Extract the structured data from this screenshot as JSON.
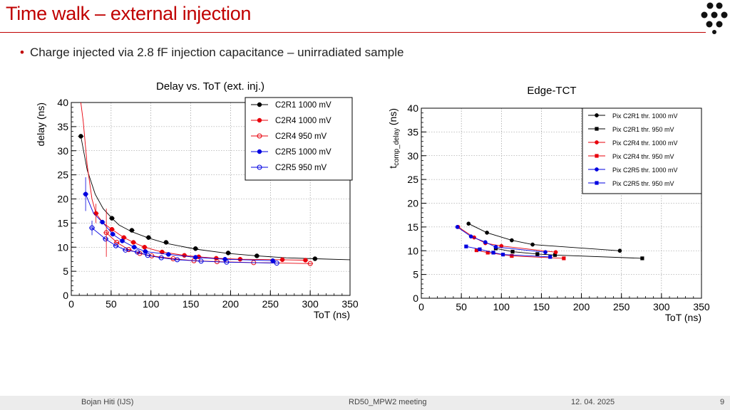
{
  "slide": {
    "title": "Time walk – external injection",
    "bullet": "Charge injected via 2.8 fF injection capacitance – unirradiated sample",
    "accent_color": "#c00000",
    "logo_icon": "dot-matrix-logo-icon"
  },
  "footer": {
    "author": "Bojan Hiti (IJS)",
    "meeting": "RD50_MPW2 meeting",
    "date": "12. 04. 2025",
    "page": "9"
  },
  "chart_data": [
    {
      "type": "scatter",
      "title": "Delay vs. ToT (ext. inj.)",
      "xlabel": "ToT (ns)",
      "ylabel": "delay (ns)",
      "xlim": [
        0,
        350
      ],
      "ylim": [
        0,
        40
      ],
      "xticks": [
        0,
        50,
        100,
        150,
        200,
        250,
        300,
        350
      ],
      "yticks": [
        0,
        5,
        10,
        15,
        20,
        25,
        30,
        35,
        40
      ],
      "grid": true,
      "legend_position": "top-right",
      "series": [
        {
          "name": "C2R1 1000 mV",
          "color": "#000000",
          "marker": "filled-circle",
          "x": [
            12,
            51,
            76,
            97,
            119,
            156,
            197,
            233,
            306
          ],
          "y": [
            33,
            16,
            13.5,
            12,
            11,
            9.7,
            8.8,
            8.2,
            7.6
          ],
          "fit": [
            [
              12,
              33
            ],
            [
              20,
              26
            ],
            [
              30,
              21
            ],
            [
              40,
              18
            ],
            [
              51,
              16
            ],
            [
              60,
              14.6
            ],
            [
              76,
              13.2
            ],
            [
              97,
              11.9
            ],
            [
              119,
              10.8
            ],
            [
              156,
              9.6
            ],
            [
              197,
              8.7
            ],
            [
              233,
              8.2
            ],
            [
              270,
              7.8
            ],
            [
              306,
              7.6
            ],
            [
              350,
              7.4
            ]
          ]
        },
        {
          "name": "C2R4 1000 mV",
          "color": "#e8000b",
          "marker": "filled-circle",
          "x": [
            31,
            51,
            66,
            78,
            92,
            114,
            142,
            160,
            182,
            212,
            265,
            294
          ],
          "y": [
            17,
            13.7,
            12,
            11,
            10,
            9,
            8.3,
            8,
            7.7,
            7.5,
            7.4,
            7.3
          ],
          "fit": [
            [
              12,
              40
            ],
            [
              15,
              36
            ],
            [
              20,
              27
            ],
            [
              26,
              20
            ],
            [
              31,
              17
            ],
            [
              40,
              15
            ],
            [
              51,
              13.7
            ],
            [
              66,
              12
            ],
            [
              78,
              11
            ],
            [
              92,
              10
            ],
            [
              114,
              9
            ],
            [
              142,
              8.3
            ],
            [
              160,
              8
            ],
            [
              182,
              7.7
            ],
            [
              212,
              7.5
            ],
            [
              265,
              7.4
            ],
            [
              294,
              7.3
            ]
          ]
        },
        {
          "name": "C2R4 950 mV",
          "color": "#e8000b",
          "marker": "open-circle",
          "x": [
            44,
            57,
            72,
            86,
            101,
            128,
            154,
            183,
            229,
            300
          ],
          "y": [
            13,
            11,
            9.5,
            8.7,
            8.2,
            7.6,
            7.2,
            7,
            6.8,
            6.6
          ],
          "fit": [
            [
              44,
              13
            ],
            [
              57,
              11
            ],
            [
              72,
              9.5
            ],
            [
              86,
              8.7
            ],
            [
              101,
              8.2
            ],
            [
              128,
              7.6
            ],
            [
              154,
              7.2
            ],
            [
              183,
              7
            ],
            [
              229,
              6.8
            ],
            [
              300,
              6.6
            ]
          ]
        },
        {
          "name": "C2R5 1000 mV",
          "color": "#0000e0",
          "marker": "filled-circle",
          "x": [
            18,
            39,
            52,
            64,
            79,
            93,
            122,
            156,
            193,
            253
          ],
          "y": [
            21,
            15.2,
            12.7,
            11.3,
            10,
            9.1,
            8.5,
            7.9,
            7.5,
            7.2
          ],
          "fit": [
            [
              18,
              21
            ],
            [
              28,
              17
            ],
            [
              39,
              15.2
            ],
            [
              52,
              12.7
            ],
            [
              64,
              11.3
            ],
            [
              79,
              10
            ],
            [
              93,
              9.1
            ],
            [
              122,
              8.5
            ],
            [
              156,
              7.9
            ],
            [
              193,
              7.5
            ],
            [
              253,
              7.2
            ]
          ]
        },
        {
          "name": "C2R5 950 mV",
          "color": "#0000e0",
          "marker": "open-circle",
          "x": [
            26,
            43,
            56,
            68,
            83,
            96,
            113,
            133,
            163,
            195,
            258
          ],
          "y": [
            14,
            11.7,
            10.3,
            9.4,
            9,
            8.3,
            7.8,
            7.4,
            7.1,
            6.9,
            6.7
          ],
          "fit": [
            [
              26,
              14
            ],
            [
              43,
              11.7
            ],
            [
              56,
              10.3
            ],
            [
              68,
              9.4
            ],
            [
              83,
              9
            ],
            [
              96,
              8.3
            ],
            [
              113,
              7.8
            ],
            [
              133,
              7.4
            ],
            [
              163,
              7.1
            ],
            [
              195,
              6.9
            ],
            [
              258,
              6.7
            ]
          ]
        }
      ]
    },
    {
      "type": "scatter",
      "title": "Edge-TCT",
      "xlabel": "ToT (ns)",
      "ylabel": "t_comp_delay (ns)",
      "ylabel_main": "t",
      "ylabel_sub": "comp_delay",
      "ylabel_unit": " (ns)",
      "xlim": [
        0,
        350
      ],
      "ylim": [
        0,
        40
      ],
      "xticks": [
        0,
        50,
        100,
        150,
        200,
        250,
        300,
        350
      ],
      "yticks": [
        0,
        5,
        10,
        15,
        20,
        25,
        30,
        35,
        40
      ],
      "grid": true,
      "legend_position": "top-right",
      "series": [
        {
          "name": "Pix C2R1 thr. 1000 mV",
          "color": "#000000",
          "marker": "filled-circle",
          "x": [
            59,
            82,
            113,
            139,
            248
          ],
          "y": [
            15.7,
            13.8,
            12.2,
            11.3,
            10
          ]
        },
        {
          "name": "Pix C2R1 thr. 950 mV",
          "color": "#000000",
          "marker": "filled-square",
          "x": [
            93,
            114,
            145,
            167,
            276
          ],
          "y": [
            10.5,
            9.8,
            9.3,
            9.1,
            8.4
          ]
        },
        {
          "name": "Pix C2R4 thr. 1000 mV",
          "color": "#e8000b",
          "marker": "filled-circle",
          "x": [
            46,
            66,
            80,
            100,
            168
          ],
          "y": [
            15,
            12.8,
            11.6,
            11,
            9.7
          ]
        },
        {
          "name": "Pix C2R4 thr. 950 mV",
          "color": "#e8000b",
          "marker": "filled-square",
          "x": [
            69,
            83,
            113,
            178
          ],
          "y": [
            10.1,
            9.6,
            8.9,
            8.4
          ]
        },
        {
          "name": "Pix C2R5 thr. 1000 mV",
          "color": "#0000e0",
          "marker": "filled-circle",
          "x": [
            45,
            62,
            80,
            93,
            155
          ],
          "y": [
            15,
            13,
            11.8,
            10.8,
            9.7
          ]
        },
        {
          "name": "Pix C2R5 thr. 950 mV",
          "color": "#0000e0",
          "marker": "filled-square",
          "x": [
            56,
            73,
            90,
            102,
            161
          ],
          "y": [
            10.9,
            10.3,
            9.6,
            9.2,
            8.7
          ]
        }
      ]
    }
  ]
}
